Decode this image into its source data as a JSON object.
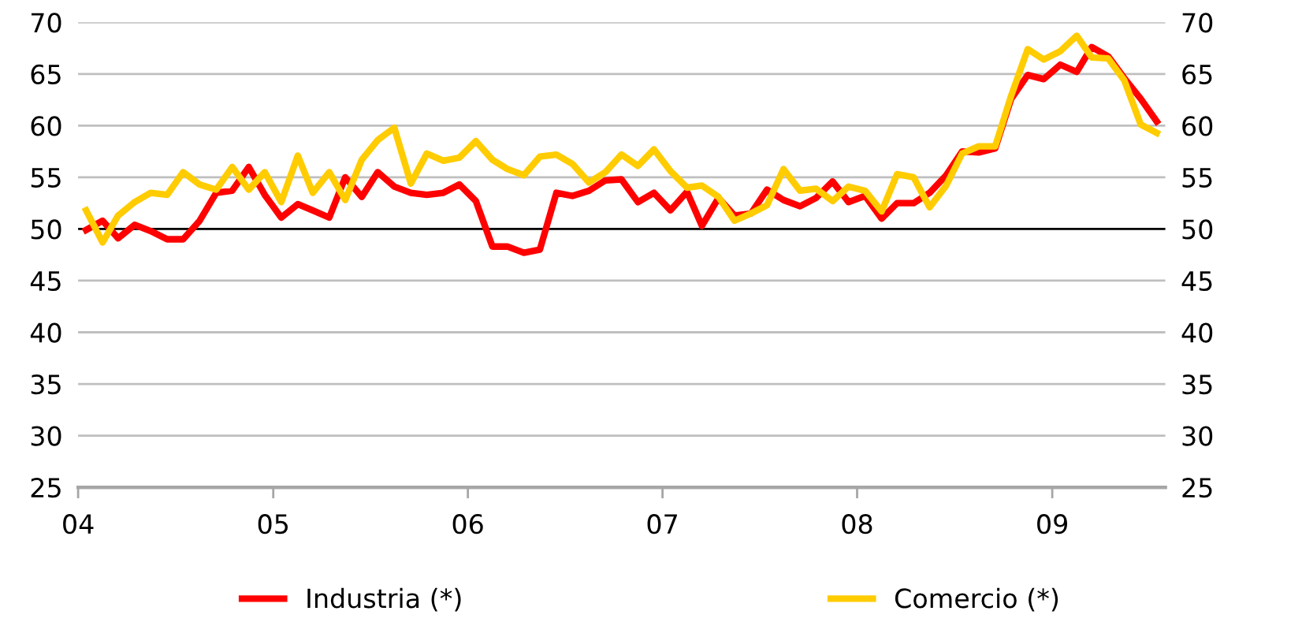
{
  "chart_data": {
    "type": "line",
    "x": [
      "2004-01-16",
      "2004-02-16",
      "2004-03-16",
      "2004-04-16",
      "2004-05-16",
      "2004-06-16",
      "2004-07-16",
      "2004-08-16",
      "2004-09-16",
      "2004-10-16",
      "2004-11-16",
      "2004-12-16",
      "2005-01-16",
      "2005-02-16",
      "2005-03-16",
      "2005-04-16",
      "2005-05-16",
      "2005-06-16",
      "2005-07-16",
      "2005-08-16",
      "2005-09-16",
      "2005-10-16",
      "2005-11-16",
      "2005-12-16",
      "2006-01-16",
      "2006-02-16",
      "2006-03-16",
      "2006-04-16",
      "2006-05-16",
      "2006-06-16",
      "2006-07-16",
      "2006-08-16",
      "2006-09-16",
      "2006-10-16",
      "2006-11-16",
      "2006-12-16",
      "2007-01-16",
      "2007-02-16",
      "2007-03-16",
      "2007-04-16",
      "2007-05-16",
      "2007-06-16",
      "2007-07-16",
      "2007-08-16",
      "2007-09-16",
      "2007-10-16",
      "2007-11-16",
      "2007-12-16",
      "2008-01-16",
      "2008-02-16",
      "2008-03-16",
      "2008-04-16",
      "2008-05-16",
      "2008-06-16",
      "2008-07-16",
      "2008-08-16",
      "2008-09-16",
      "2008-10-16",
      "2008-11-16",
      "2008-12-16",
      "2009-01-16",
      "2009-02-16",
      "2009-03-16",
      "2009-04-16",
      "2009-05-16",
      "2009-06-16",
      "2009-07-16"
    ],
    "series": [
      {
        "name": "Industria (*)",
        "color": "#ff0000",
        "values": [
          49.9,
          50.8,
          49.1,
          50.4,
          49.8,
          49.0,
          49.0,
          50.8,
          53.5,
          53.7,
          56.0,
          53.3,
          51.1,
          52.4,
          51.8,
          51.1,
          55.0,
          53.1,
          55.5,
          54.1,
          53.5,
          53.3,
          53.5,
          54.3,
          52.7,
          48.3,
          48.3,
          47.7,
          48.0,
          53.5,
          53.2,
          53.7,
          54.7,
          54.8,
          52.6,
          53.5,
          51.8,
          53.6,
          50.3,
          53.0,
          51.3,
          51.5,
          53.8,
          52.8,
          52.2,
          53.0,
          54.6,
          52.6,
          53.2,
          51.0,
          52.5,
          52.5,
          53.5,
          55.2,
          57.5,
          57.4,
          57.8,
          62.6,
          64.9,
          64.5,
          65.9,
          65.2,
          67.6,
          66.7,
          64.6,
          62.6,
          60.4
        ]
      },
      {
        "name": "Comercio (*)",
        "color": "#ffcc00",
        "values": [
          51.8,
          48.7,
          51.3,
          52.6,
          53.5,
          53.3,
          55.5,
          54.3,
          53.8,
          56.0,
          53.8,
          55.5,
          52.6,
          57.1,
          53.5,
          55.5,
          52.8,
          56.7,
          58.6,
          59.8,
          54.4,
          57.3,
          56.6,
          56.9,
          58.5,
          56.7,
          55.8,
          55.2,
          57.0,
          57.2,
          56.3,
          54.5,
          55.5,
          57.2,
          56.1,
          57.7,
          55.6,
          54.0,
          54.2,
          53.1,
          50.8,
          51.5,
          52.3,
          55.8,
          53.7,
          53.9,
          52.7,
          54.1,
          53.7,
          51.7,
          55.3,
          55.0,
          52.1,
          54.2,
          57.3,
          58.0,
          58.0,
          62.9,
          67.4,
          66.4,
          67.2,
          68.7,
          66.6,
          66.5,
          64.4,
          60.1,
          59.3
        ]
      }
    ],
    "xlim": [
      "2004-01",
      "2009-08"
    ],
    "xticks": [
      {
        "value": "2004",
        "label": "04"
      },
      {
        "value": "2005",
        "label": "05"
      },
      {
        "value": "2006",
        "label": "06"
      },
      {
        "value": "2007",
        "label": "07"
      },
      {
        "value": "2008",
        "label": "08"
      },
      {
        "value": "2009",
        "label": "09"
      }
    ],
    "ylim": [
      25,
      70
    ],
    "yticks": [
      25,
      30,
      35,
      40,
      45,
      50,
      55,
      60,
      65,
      70
    ],
    "y2lim": [
      25,
      70
    ],
    "y2ticks": [
      25,
      30,
      35,
      40,
      45,
      50,
      55,
      60,
      65,
      70
    ],
    "ref_lines": [
      {
        "axis": "y",
        "value": 50,
        "color": "#000000"
      }
    ],
    "grid": "y",
    "legend": "bottom",
    "marker": "none",
    "line_style": "solid"
  }
}
